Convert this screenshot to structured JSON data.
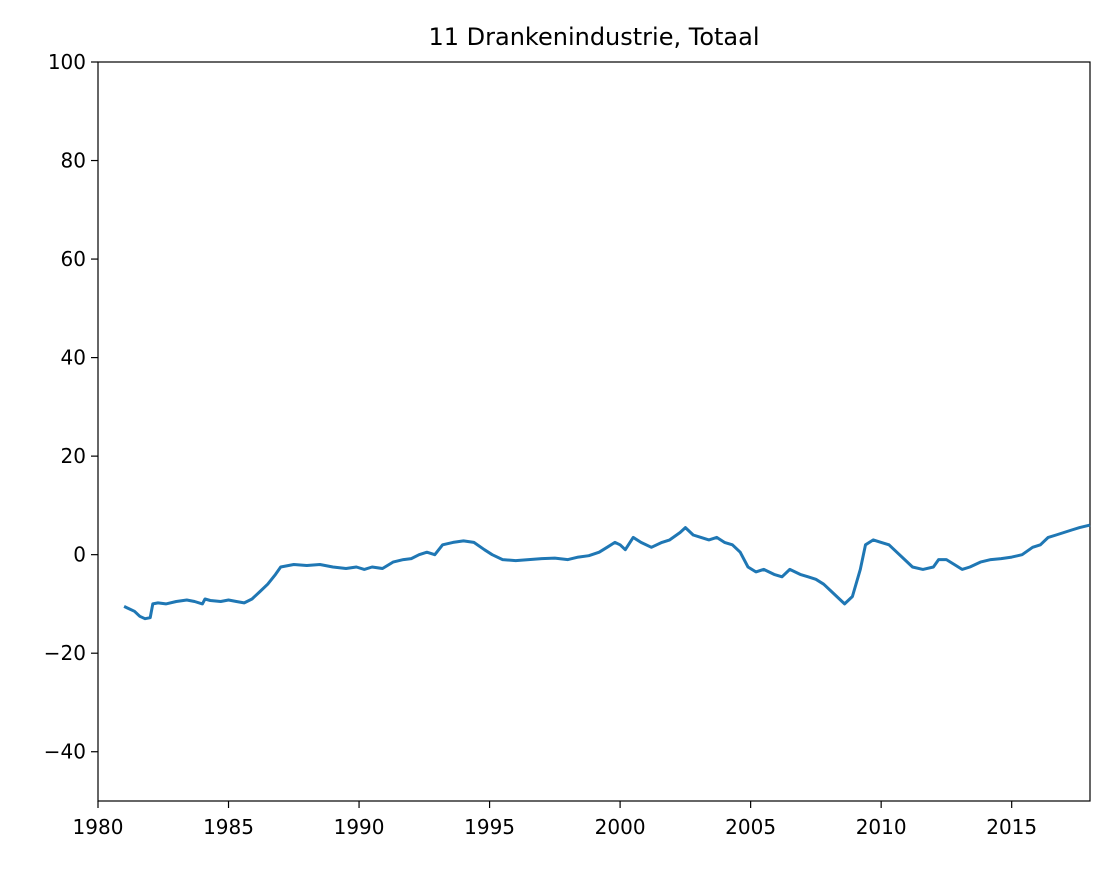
{
  "chart_data": {
    "type": "line",
    "title": "11 Drankenindustrie, Totaal",
    "xlabel": "",
    "ylabel": "",
    "xlim": [
      1980,
      2018
    ],
    "ylim": [
      -50,
      100
    ],
    "x_ticks": [
      1980,
      1985,
      1990,
      1995,
      2000,
      2005,
      2010,
      2015
    ],
    "x_tick_labels": [
      "1980",
      "1985",
      "1990",
      "1995",
      "2000",
      "2005",
      "2010",
      "2015"
    ],
    "y_ticks": [
      100,
      80,
      60,
      40,
      20,
      0,
      -20,
      -40
    ],
    "y_tick_labels": [
      "100",
      "80",
      "60",
      "40",
      "20",
      "0",
      "−20",
      "−40"
    ],
    "grid": false,
    "line_color": "#1f77b4",
    "series": [
      {
        "x": [
          1981.0,
          1981.2,
          1981.4,
          1981.6,
          1981.8,
          1982.0,
          1982.1,
          1982.3,
          1982.6,
          1983.0,
          1983.4,
          1983.7,
          1984.0,
          1984.1,
          1984.3,
          1984.7,
          1985.0,
          1985.3,
          1985.6,
          1985.9,
          1986.2,
          1986.5,
          1986.8,
          1987.0,
          1987.5,
          1988.0,
          1988.5,
          1989.0,
          1989.5,
          1989.9,
          1990.2,
          1990.5,
          1990.9,
          1991.3,
          1991.7,
          1992.0,
          1992.3,
          1992.6,
          1992.9,
          1993.2,
          1993.6,
          1994.0,
          1994.4,
          1994.8,
          1995.1,
          1995.5,
          1996.0,
          1996.5,
          1997.0,
          1997.5,
          1998.0,
          1998.4,
          1998.8,
          1999.2,
          1999.5,
          1999.8,
          2000.0,
          2000.2,
          2000.5,
          2000.8,
          2001.2,
          2001.6,
          2001.9,
          2002.3,
          2002.5,
          2002.8,
          2003.1,
          2003.4,
          2003.7,
          2004.0,
          2004.3,
          2004.6,
          2004.9,
          2005.2,
          2005.5,
          2005.9,
          2006.2,
          2006.5,
          2006.9,
          2007.2,
          2007.5,
          2007.8,
          2008.1,
          2008.4,
          2008.6,
          2008.9,
          2009.2,
          2009.4,
          2009.7,
          2010.0,
          2010.3,
          2010.6,
          2010.9,
          2011.2,
          2011.6,
          2012.0,
          2012.2,
          2012.5,
          2012.8,
          2013.1,
          2013.4,
          2013.8,
          2014.2,
          2014.6,
          2015.0,
          2015.4,
          2015.8,
          2016.1,
          2016.4,
          2016.7,
          2017.0,
          2017.3,
          2017.6,
          2018.0
        ],
        "y": [
          -10.5,
          -11.0,
          -11.5,
          -12.5,
          -13.0,
          -12.8,
          -10.0,
          -9.8,
          -10.0,
          -9.5,
          -9.2,
          -9.5,
          -10.0,
          -9.0,
          -9.3,
          -9.5,
          -9.2,
          -9.5,
          -9.8,
          -9.0,
          -7.5,
          -6.0,
          -4.0,
          -2.5,
          -2.0,
          -2.2,
          -2.0,
          -2.5,
          -2.8,
          -2.5,
          -3.0,
          -2.5,
          -2.8,
          -1.5,
          -1.0,
          -0.8,
          0.0,
          0.5,
          0.0,
          2.0,
          2.5,
          2.8,
          2.5,
          1.0,
          0.0,
          -1.0,
          -1.2,
          -1.0,
          -0.8,
          -0.7,
          -1.0,
          -0.5,
          -0.2,
          0.5,
          1.5,
          2.5,
          2.0,
          1.0,
          3.5,
          2.5,
          1.5,
          2.5,
          3.0,
          4.5,
          5.5,
          4.0,
          3.5,
          3.0,
          3.5,
          2.5,
          2.0,
          0.5,
          -2.5,
          -3.5,
          -3.0,
          -4.0,
          -4.5,
          -3.0,
          -4.0,
          -4.5,
          -5.0,
          -6.0,
          -7.5,
          -9.0,
          -10.0,
          -8.5,
          -3.0,
          2.0,
          3.0,
          2.5,
          2.0,
          0.5,
          -1.0,
          -2.5,
          -3.0,
          -2.5,
          -1.0,
          -1.0,
          -2.0,
          -3.0,
          -2.5,
          -1.5,
          -1.0,
          -0.8,
          -0.5,
          0.0,
          1.5,
          2.0,
          3.5,
          4.0,
          4.5,
          5.0,
          5.5,
          6.0
        ]
      }
    ]
  }
}
